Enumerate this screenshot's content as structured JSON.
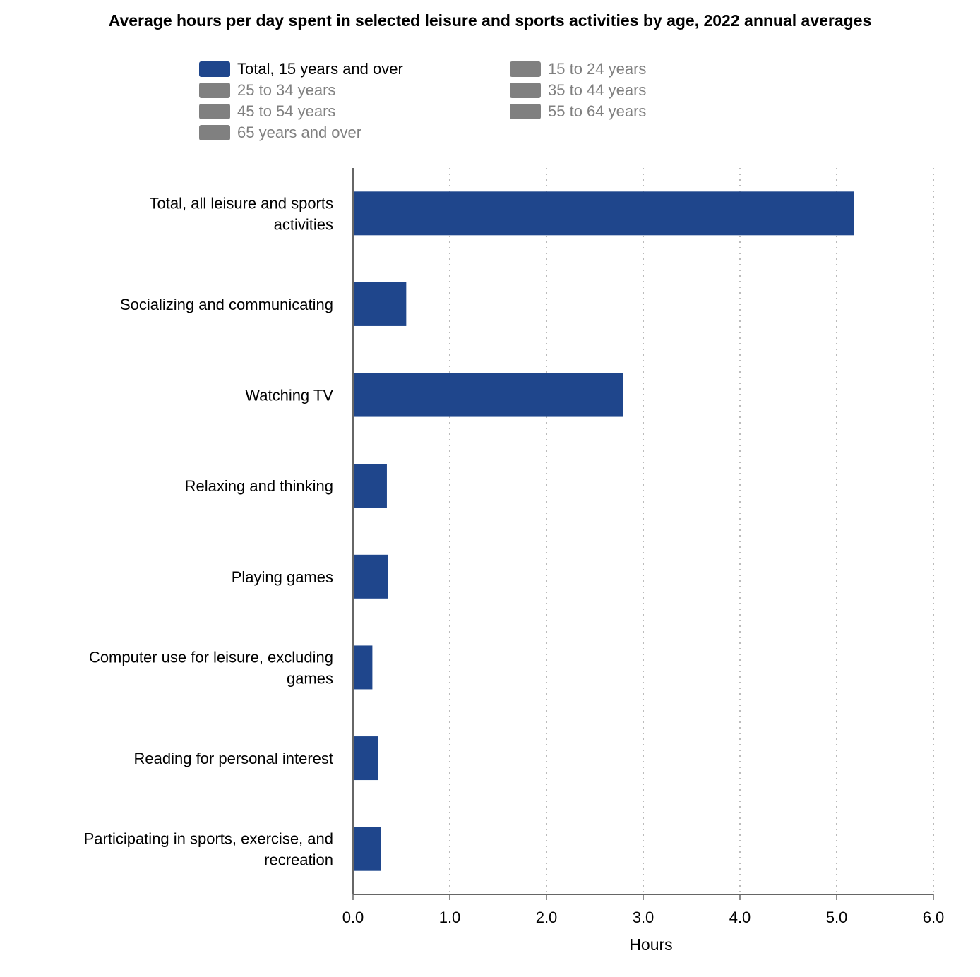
{
  "chart_data": {
    "type": "bar",
    "orientation": "horizontal",
    "title": "Average hours per day spent in selected leisure and sports activities by age, 2022 annual averages",
    "xlabel": "Hours",
    "xlim": [
      0,
      6
    ],
    "xticks": [
      "0.0",
      "1.0",
      "2.0",
      "3.0",
      "4.0",
      "5.0",
      "6.0"
    ],
    "grid": "vertical dotted",
    "legend_position": "top",
    "categories": [
      "Total, all leisure and sports activities",
      "Socializing and communicating",
      "Watching TV",
      "Relaxing and thinking",
      "Playing games",
      "Computer use for leisure, excluding games",
      "Reading for personal interest",
      "Participating in sports, exercise, and recreation"
    ],
    "legend": [
      {
        "name": "Total, 15 years and over",
        "color": "#1f468c",
        "active": true
      },
      {
        "name": "15 to 24 years",
        "color": "#808080",
        "active": false
      },
      {
        "name": "25 to 34 years",
        "color": "#808080",
        "active": false
      },
      {
        "name": "35 to 44 years",
        "color": "#808080",
        "active": false
      },
      {
        "name": "45 to 54 years",
        "color": "#808080",
        "active": false
      },
      {
        "name": "55 to 64 years",
        "color": "#808080",
        "active": false
      },
      {
        "name": "65 years and over",
        "color": "#808080",
        "active": false
      }
    ],
    "series": [
      {
        "name": "Total, 15 years and over",
        "color": "#1f468c",
        "values": [
          5.18,
          0.55,
          2.79,
          0.35,
          0.36,
          0.2,
          0.26,
          0.29
        ]
      }
    ]
  }
}
